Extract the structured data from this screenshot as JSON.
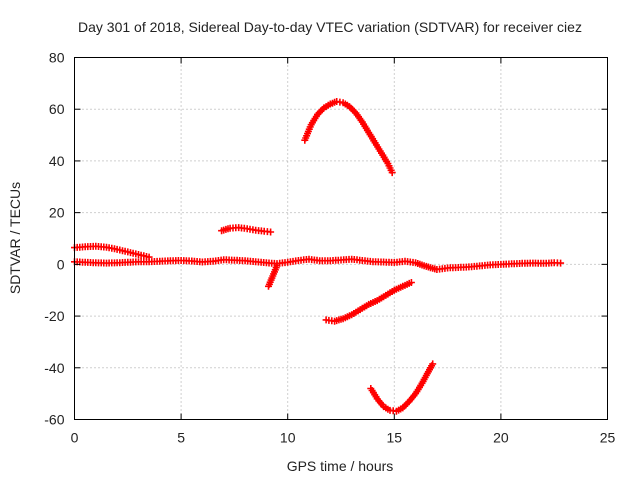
{
  "chart_data": {
    "type": "scatter",
    "title": "Day 301 of 2018, Sidereal Day-to-day VTEC variation (SDTVAR) for receiver ciez",
    "xlabel": "GPS time / hours",
    "ylabel": "SDTVAR / TECUs",
    "xlim": [
      0,
      25
    ],
    "ylim": [
      -60,
      80
    ],
    "xticks": [
      0,
      5,
      10,
      15,
      20,
      25
    ],
    "yticks": [
      -60,
      -40,
      -20,
      0,
      20,
      40,
      60,
      80
    ],
    "xtick_labels": [
      "0",
      "5",
      "10",
      "15",
      "20",
      "25"
    ],
    "ytick_labels": [
      "-60",
      "-40",
      "-20",
      "0",
      "20",
      "40",
      "60",
      "80"
    ],
    "grid": true,
    "marker": "plus",
    "color": "#ff0000",
    "series": [
      {
        "x": [
          0.0,
          0.5,
          1.0,
          1.5,
          2.0,
          2.5,
          3.0,
          3.5,
          4.0,
          4.5,
          5.0,
          5.5,
          6.0,
          6.5,
          7.0,
          7.5,
          8.0,
          8.5,
          9.0,
          9.5,
          10.0,
          10.5,
          11.0,
          11.5,
          12.0,
          12.5,
          13.0,
          13.5,
          14.0,
          14.5,
          15.0,
          15.5,
          16.0,
          16.5,
          17.0,
          17.5,
          18.0,
          18.5,
          19.0,
          19.5,
          20.0,
          20.5,
          21.0,
          21.5,
          22.0,
          22.5,
          22.8
        ],
        "y": [
          1.0,
          0.8,
          0.6,
          0.5,
          0.6,
          0.8,
          1.0,
          1.0,
          1.2,
          1.4,
          1.5,
          1.3,
          0.9,
          1.2,
          1.8,
          1.6,
          1.4,
          1.0,
          0.6,
          0.3,
          0.8,
          1.5,
          2.0,
          1.4,
          1.4,
          1.7,
          2.0,
          1.5,
          1.0,
          0.9,
          0.7,
          1.2,
          0.6,
          -0.8,
          -2.0,
          -1.4,
          -1.2,
          -1.0,
          -0.6,
          -0.2,
          0.0,
          0.2,
          0.4,
          0.5,
          0.4,
          0.6,
          0.5
        ]
      },
      {
        "x": [
          0.0,
          0.5,
          1.0,
          1.5,
          2.0,
          2.5,
          3.0,
          3.5
        ],
        "y": [
          6.5,
          6.8,
          7.0,
          6.6,
          5.8,
          4.8,
          3.8,
          2.8
        ]
      },
      {
        "x": [
          6.9,
          7.3,
          7.7,
          8.1,
          8.5,
          8.9,
          9.2
        ],
        "y": [
          13.0,
          14.0,
          14.2,
          13.8,
          13.2,
          12.8,
          12.5
        ]
      },
      {
        "x": [
          9.1,
          9.5
        ],
        "y": [
          -8.5,
          -0.5
        ]
      },
      {
        "x": [
          10.8,
          11.1,
          11.4,
          11.7,
          12.0,
          12.3,
          12.6,
          12.9,
          13.2,
          13.5,
          13.8,
          14.1,
          14.4,
          14.7,
          14.9
        ],
        "y": [
          48.0,
          54.0,
          58.0,
          60.5,
          62.0,
          63.0,
          62.5,
          61.0,
          58.5,
          55.0,
          51.0,
          47.0,
          43.0,
          39.0,
          35.5
        ]
      },
      {
        "x": [
          11.8,
          12.2,
          12.6,
          13.0,
          13.4,
          13.8,
          14.2,
          14.6,
          15.0,
          15.4,
          15.8
        ],
        "y": [
          -21.5,
          -22.0,
          -21.0,
          -19.5,
          -17.5,
          -15.5,
          -14.0,
          -12.0,
          -10.0,
          -8.5,
          -7.0
        ]
      },
      {
        "x": [
          13.9,
          14.2,
          14.5,
          14.8,
          15.1,
          15.4,
          15.7,
          16.0,
          16.3,
          16.6,
          16.8
        ],
        "y": [
          -48.0,
          -52.0,
          -55.0,
          -56.5,
          -56.8,
          -55.5,
          -53.0,
          -50.0,
          -46.0,
          -41.5,
          -38.5
        ]
      }
    ]
  }
}
